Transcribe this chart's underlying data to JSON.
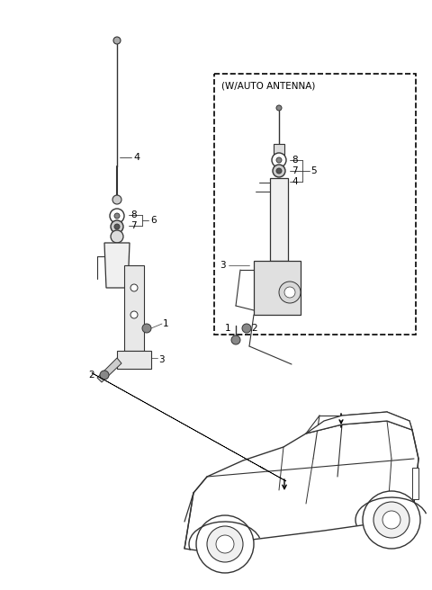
{
  "bg_color": "#ffffff",
  "lc": "#333333",
  "fig_width": 4.8,
  "fig_height": 6.56,
  "dpi": 100
}
